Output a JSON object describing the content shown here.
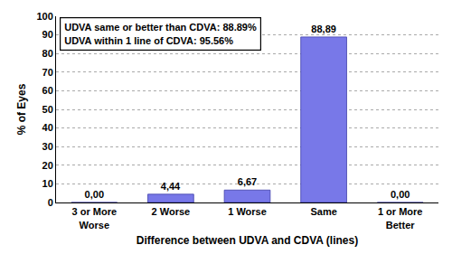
{
  "chart_data": {
    "type": "bar",
    "categories": [
      "3 or More\nWorse",
      "2 Worse",
      "1 Worse",
      "Same",
      "1 or More\nBetter"
    ],
    "values": [
      0.0,
      4.44,
      6.67,
      88.89,
      0.0
    ],
    "value_labels": [
      "0,00",
      "4,44",
      "6,67",
      "88,89",
      "0,00"
    ],
    "data_labels": true,
    "color": "#7878e8",
    "xlabel": "Difference between UDVA and CDVA (lines)",
    "ylabel": "% of Eyes",
    "ylim": [
      0,
      100
    ],
    "yticks": [
      0,
      10,
      20,
      30,
      40,
      50,
      60,
      70,
      80,
      90,
      100
    ],
    "annotations": [
      "UDVA same or better than CDVA: 88.89%",
      "UDVA within 1 line of CDVA: 95.56%"
    ],
    "grid": true
  }
}
